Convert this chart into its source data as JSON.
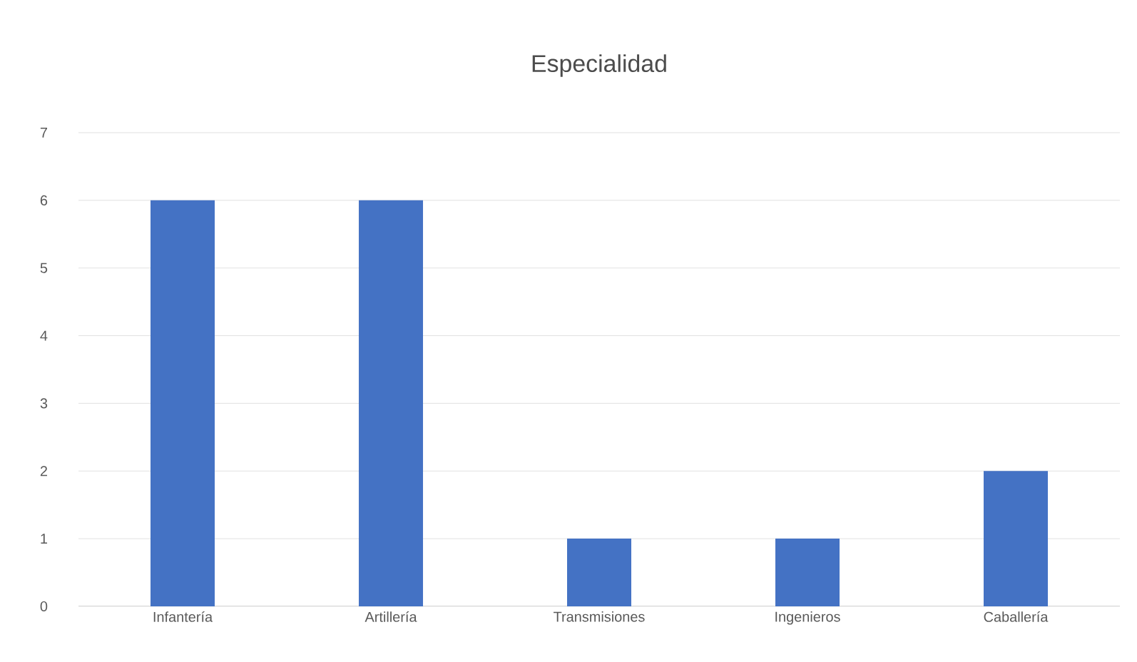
{
  "chart_data": {
    "type": "bar",
    "title": "Especialidad",
    "categories": [
      "Infantería",
      "Artillería",
      "Transmisiones",
      "Ingenieros",
      "Caballería"
    ],
    "values": [
      6,
      6,
      1,
      1,
      2
    ],
    "color": "#4472c4",
    "ylim": [
      0,
      7
    ],
    "yticks": [
      0,
      1,
      2,
      3,
      4,
      5,
      6,
      7
    ],
    "grid": "y"
  }
}
